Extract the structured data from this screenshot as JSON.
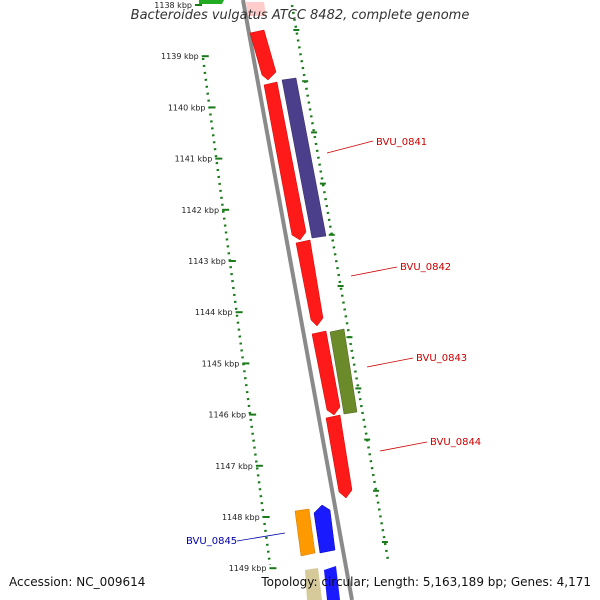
{
  "title": "Bacteroides vulgatus ATCC 8482, complete genome",
  "footer": {
    "accession": "Accession: NC_009614",
    "topology": "Topology: circular; Length: 5,163,189 bp; Genes: 4,171"
  },
  "ticks": [
    "1138 kbp",
    "1139 kbp",
    "1140 kbp",
    "1141 kbp",
    "1142 kbp",
    "1143 kbp",
    "1144 kbp",
    "1145 kbp",
    "1146 kbp",
    "1147 kbp",
    "1148 kbp",
    "1149 kbp"
  ],
  "gene_labels": [
    {
      "text": "BVU_0841",
      "color": "#cc0000"
    },
    {
      "text": "BVU_0842",
      "color": "#cc0000"
    },
    {
      "text": "BVU_0843",
      "color": "#cc0000"
    },
    {
      "text": "BVU_0844",
      "color": "#cc0000"
    },
    {
      "text": "BVU_0845",
      "color": "#0000aa"
    }
  ],
  "colors": {
    "backbone": "#8a8a8a",
    "tick_marks": "#1a7a1a",
    "red_feature": "#ff1a1a",
    "purple_feature": "#4b3f8c",
    "olive_feature": "#6b8a2a",
    "orange_feature": "#ff9900",
    "blue_feature": "#1a1aff",
    "green_feature": "#22aa22",
    "tan_feature": "#d6c99a"
  }
}
